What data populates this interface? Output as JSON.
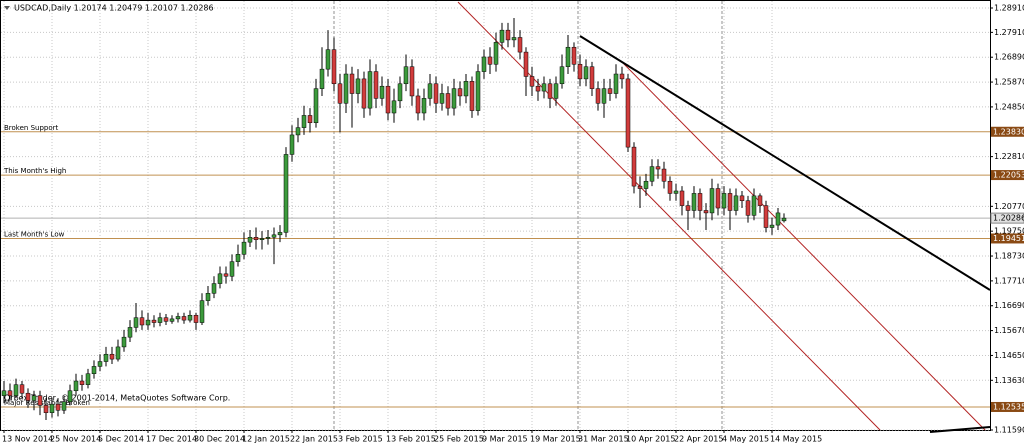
{
  "chart_data": {
    "type": "candlestick",
    "title": "USDCAD,Daily  1.20174 1.20479 1.20107 1.20286",
    "footer": "Orbex Trader, © 2001-2014, MetaQuotes Software Corp.",
    "categories": [
      "13 Nov 2014",
      null,
      null,
      null,
      null,
      null,
      null,
      null,
      "25 Nov 2014",
      null,
      null,
      null,
      null,
      null,
      null,
      null,
      "5 Dec 2014",
      null,
      null,
      null,
      null,
      null,
      null,
      null,
      "17 Dec 2014",
      null,
      null,
      null,
      null,
      null,
      null,
      null,
      "30 Dec 2014",
      null,
      null,
      null,
      null,
      null,
      null,
      null,
      "12 Jan 2015",
      null,
      null,
      null,
      null,
      null,
      null,
      null,
      "22 Jan 2015",
      null,
      null,
      null,
      null,
      null,
      null,
      null,
      "3 Feb 2015",
      null,
      null,
      null,
      null,
      null,
      null,
      null,
      "13 Feb 2015",
      null,
      null,
      null,
      null,
      null,
      null,
      null,
      "25 Feb 2015",
      null,
      null,
      null,
      null,
      null,
      null,
      null,
      "9 Mar 2015",
      null,
      null,
      null,
      null,
      null,
      null,
      null,
      "19 Mar 2015",
      null,
      null,
      null,
      null,
      null,
      null,
      null,
      "31 Mar 2015",
      null,
      null,
      null,
      null,
      null,
      null,
      null,
      "10 Apr 2015",
      null,
      null,
      null,
      null,
      null,
      null,
      null,
      "22 Apr 2015",
      null,
      null,
      null,
      null,
      null,
      null,
      null,
      "4 May 2015",
      null,
      null,
      null,
      null,
      null,
      null,
      null,
      "14 May 2015",
      null,
      null
    ],
    "open": [
      1.13,
      1.132,
      1.13,
      1.1345,
      1.131,
      1.128,
      1.13,
      1.126,
      1.123,
      1.1265,
      1.124,
      1.1275,
      1.132,
      1.136,
      1.1345,
      1.139,
      1.142,
      1.144,
      1.147,
      1.145,
      1.15,
      1.154,
      1.158,
      1.162,
      1.159,
      1.161,
      1.16,
      1.162,
      1.1605,
      1.1615,
      1.1625,
      1.161,
      1.163,
      1.16,
      1.169,
      1.172,
      1.176,
      1.18,
      1.179,
      1.185,
      1.188,
      1.193,
      1.195,
      1.194,
      1.1945,
      1.195,
      1.196,
      1.197,
      1.229,
      1.237,
      1.24,
      1.245,
      1.242,
      1.256,
      1.264,
      1.272,
      1.258,
      1.25,
      1.262,
      1.254,
      1.26,
      1.248,
      1.263,
      1.252,
      1.257,
      1.246,
      1.251,
      1.258,
      1.265,
      1.253,
      1.246,
      1.252,
      1.258,
      1.25,
      1.254,
      1.248,
      1.256,
      1.253,
      1.259,
      1.247,
      1.263,
      1.269,
      1.266,
      1.275,
      1.28,
      1.276,
      1.277,
      1.271,
      1.261,
      1.257,
      1.255,
      1.258,
      1.252,
      1.258,
      1.265,
      1.273,
      1.266,
      1.26,
      1.265,
      1.256,
      1.25,
      1.256,
      1.254,
      1.262,
      1.26,
      1.232,
      1.216,
      1.215,
      1.218,
      1.224,
      1.223,
      1.218,
      1.213,
      1.214,
      1.208,
      1.206,
      1.213,
      1.206,
      1.205,
      1.215,
      1.207,
      1.213,
      1.206,
      1.212,
      1.21,
      1.204,
      1.212,
      1.208,
      1.199,
      1.2,
      1.20174
    ],
    "high": [
      1.136,
      1.135,
      1.137,
      1.136,
      1.133,
      1.132,
      1.132,
      1.129,
      1.129,
      1.129,
      1.13,
      1.1345,
      1.139,
      1.1385,
      1.141,
      1.1445,
      1.147,
      1.15,
      1.15,
      1.153,
      1.157,
      1.161,
      1.168,
      1.165,
      1.164,
      1.163,
      1.164,
      1.1635,
      1.163,
      1.164,
      1.164,
      1.165,
      1.164,
      1.172,
      1.175,
      1.179,
      1.183,
      1.183,
      1.188,
      1.192,
      1.197,
      1.198,
      1.199,
      1.1975,
      1.198,
      1.199,
      1.2,
      1.232,
      1.241,
      1.244,
      1.249,
      1.248,
      1.26,
      1.273,
      1.28,
      1.277,
      1.262,
      1.266,
      1.265,
      1.264,
      1.263,
      1.268,
      1.266,
      1.261,
      1.26,
      1.256,
      1.261,
      1.27,
      1.268,
      1.256,
      1.256,
      1.262,
      1.261,
      1.258,
      1.257,
      1.26,
      1.259,
      1.262,
      1.261,
      1.266,
      1.272,
      1.273,
      1.279,
      1.283,
      1.283,
      1.285,
      1.28,
      1.273,
      1.265,
      1.26,
      1.261,
      1.26,
      1.261,
      1.27,
      1.278,
      1.275,
      1.27,
      1.268,
      1.267,
      1.259,
      1.26,
      1.26,
      1.266,
      1.265,
      1.262,
      1.234,
      1.22,
      1.221,
      1.227,
      1.227,
      1.226,
      1.22,
      1.217,
      1.216,
      1.21,
      1.216,
      1.215,
      1.209,
      1.219,
      1.217,
      1.216,
      1.215,
      1.215,
      1.214,
      1.212,
      1.215,
      1.213,
      1.21,
      1.203,
      1.207,
      1.20479
    ],
    "low": [
      1.127,
      1.128,
      1.129,
      1.129,
      1.125,
      1.124,
      1.122,
      1.12,
      1.121,
      1.1215,
      1.1225,
      1.126,
      1.13,
      1.132,
      1.133,
      1.137,
      1.14,
      1.142,
      1.143,
      1.144,
      1.148,
      1.152,
      1.156,
      1.157,
      1.157,
      1.158,
      1.1585,
      1.159,
      1.1595,
      1.16,
      1.1595,
      1.16,
      1.157,
      1.159,
      1.167,
      1.17,
      1.174,
      1.176,
      1.177,
      1.183,
      1.186,
      1.191,
      1.19,
      1.19,
      1.192,
      1.184,
      1.193,
      1.195,
      1.226,
      1.234,
      1.237,
      1.238,
      1.24,
      1.253,
      1.261,
      1.255,
      1.238,
      1.246,
      1.24,
      1.25,
      1.244,
      1.245,
      1.248,
      1.249,
      1.243,
      1.242,
      1.248,
      1.255,
      1.249,
      1.243,
      1.243,
      1.249,
      1.246,
      1.247,
      1.245,
      1.245,
      1.249,
      1.25,
      1.244,
      1.245,
      1.26,
      1.262,
      1.263,
      1.272,
      1.273,
      1.273,
      1.268,
      1.253,
      1.253,
      1.251,
      1.252,
      1.248,
      1.249,
      1.256,
      1.262,
      1.263,
      1.257,
      1.257,
      1.253,
      1.247,
      1.244,
      1.251,
      1.252,
      1.256,
      1.23,
      1.213,
      1.207,
      1.212,
      1.216,
      1.219,
      1.215,
      1.21,
      1.21,
      1.204,
      1.198,
      1.203,
      1.202,
      1.198,
      1.202,
      1.204,
      1.204,
      1.198,
      1.204,
      1.207,
      1.201,
      1.202,
      1.205,
      1.197,
      1.196,
      1.198,
      1.20107
    ],
    "close": [
      1.132,
      1.13,
      1.1345,
      1.131,
      1.128,
      1.13,
      1.126,
      1.123,
      1.1265,
      1.124,
      1.1275,
      1.132,
      1.136,
      1.1345,
      1.139,
      1.142,
      1.144,
      1.147,
      1.145,
      1.15,
      1.154,
      1.158,
      1.162,
      1.159,
      1.161,
      1.16,
      1.162,
      1.1605,
      1.1615,
      1.1625,
      1.161,
      1.163,
      1.16,
      1.169,
      1.172,
      1.176,
      1.18,
      1.179,
      1.185,
      1.188,
      1.193,
      1.195,
      1.194,
      1.1945,
      1.195,
      1.196,
      1.197,
      1.229,
      1.237,
      1.24,
      1.245,
      1.242,
      1.256,
      1.264,
      1.272,
      1.258,
      1.25,
      1.262,
      1.254,
      1.26,
      1.248,
      1.263,
      1.252,
      1.257,
      1.246,
      1.251,
      1.258,
      1.265,
      1.253,
      1.246,
      1.252,
      1.258,
      1.25,
      1.254,
      1.248,
      1.256,
      1.253,
      1.259,
      1.247,
      1.263,
      1.269,
      1.266,
      1.275,
      1.28,
      1.276,
      1.277,
      1.271,
      1.261,
      1.257,
      1.255,
      1.258,
      1.252,
      1.258,
      1.265,
      1.273,
      1.266,
      1.26,
      1.265,
      1.256,
      1.25,
      1.256,
      1.254,
      1.262,
      1.26,
      1.232,
      1.216,
      1.215,
      1.218,
      1.224,
      1.223,
      1.218,
      1.213,
      1.214,
      1.208,
      1.206,
      1.213,
      1.206,
      1.205,
      1.215,
      1.207,
      1.213,
      1.206,
      1.212,
      1.21,
      1.204,
      1.212,
      1.208,
      1.199,
      1.2,
      1.205,
      1.20286
    ],
    "up_color": "#3c9a3c",
    "down_color": "#d23c3c",
    "wick_color": "#000000",
    "ylim": [
      1.1159,
      1.29238
    ],
    "yticks": [
      {
        "value": 1.2891,
        "label": "1.28910"
      },
      {
        "value": 1.2791,
        "label": "1.27910"
      },
      {
        "value": 1.2689,
        "label": "1.26890"
      },
      {
        "value": 1.2587,
        "label": "1.25870"
      },
      {
        "value": 1.2485,
        "label": "1.24850"
      },
      {
        "value": 1.2281,
        "label": "1.22810"
      },
      {
        "value": 1.2077,
        "label": "1.20770"
      },
      {
        "value": 1.1975,
        "label": "1.19750"
      },
      {
        "value": 1.1873,
        "label": "1.18730"
      },
      {
        "value": 1.1771,
        "label": "1.17710"
      },
      {
        "value": 1.1669,
        "label": "1.16690"
      },
      {
        "value": 1.1567,
        "label": "1.15670"
      },
      {
        "value": 1.1465,
        "label": "1.14650"
      },
      {
        "value": 1.1363,
        "label": "1.13630"
      },
      {
        "value": 1.1159,
        "label": "1.11590"
      }
    ],
    "grid": true,
    "levels_color": "#c09050",
    "levels_box_color": "#8a4a14",
    "levels": [
      {
        "name": "Broken Support",
        "value": 1.2383,
        "label": "1.23830"
      },
      {
        "name": "This Month's High",
        "value": 1.22053,
        "label": "1.22053"
      },
      {
        "name": "Last Month's Low",
        "value": 1.19451,
        "label": "1.19451"
      },
      {
        "name": "Major Resistance Broken",
        "value": 1.12535,
        "label": "1.12535"
      }
    ],
    "current_price": {
      "value": 1.20286,
      "label": "1.20286"
    }
  }
}
